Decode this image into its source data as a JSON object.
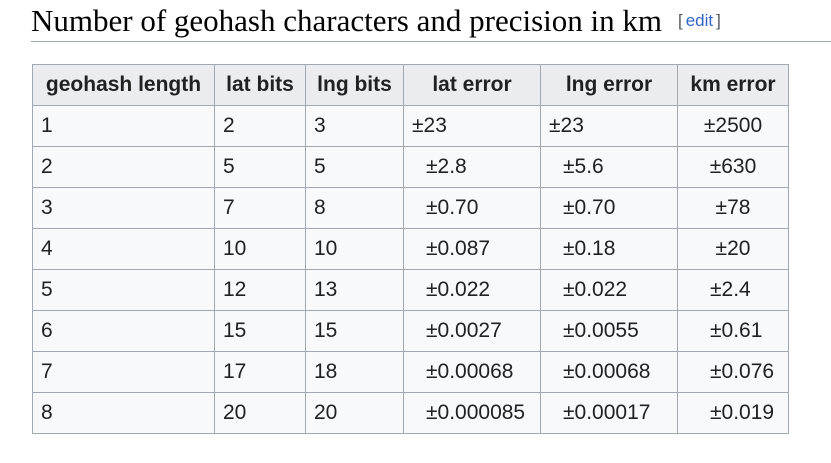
{
  "heading": {
    "title": "Number of geohash characters and precision in km",
    "edit_open": "[",
    "edit_label": "edit",
    "edit_close": "]"
  },
  "table": {
    "columns": [
      "geohash length",
      "lat bits",
      "lng bits",
      "lat error",
      "lng error",
      "km error"
    ],
    "rows": [
      [
        "1",
        "2",
        "3",
        "±23",
        "±23",
        "±2500"
      ],
      [
        "2",
        "5",
        "5",
        "±2.8",
        "±5.6",
        "±630"
      ],
      [
        "3",
        "7",
        "8",
        "±0.70",
        "±0.70",
        "±78"
      ],
      [
        "4",
        "10",
        "10",
        "±0.087",
        "±0.18",
        "±20"
      ],
      [
        "5",
        "12",
        "13",
        "±0.022",
        "±0.022",
        "±2.4"
      ],
      [
        "6",
        "15",
        "15",
        "±0.0027",
        "±0.0055",
        "±0.61"
      ],
      [
        "7",
        "17",
        "18",
        "±0.00068",
        "±0.00068",
        "±0.076"
      ],
      [
        "8",
        "20",
        "20",
        "±0.000085",
        "±0.00017",
        "±0.019"
      ]
    ]
  }
}
